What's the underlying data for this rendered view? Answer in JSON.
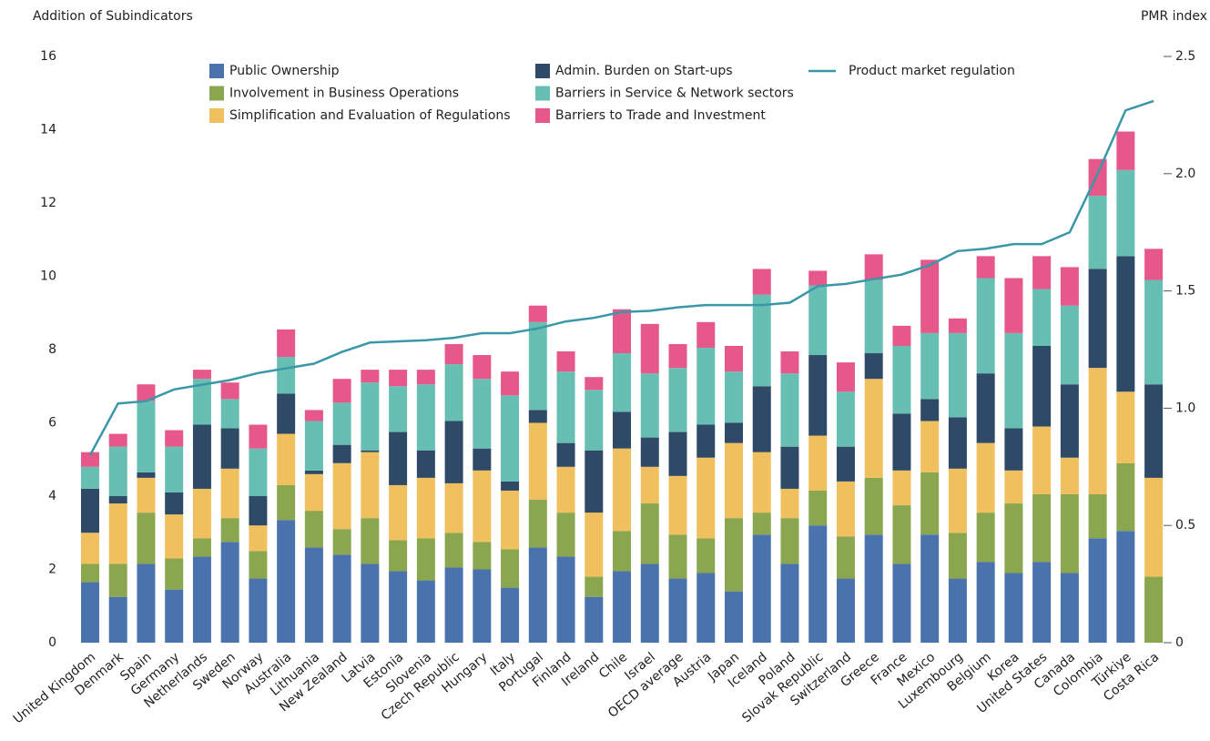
{
  "chart_data": {
    "type": "bar",
    "stacked": true,
    "y_axis_label": "Addition of Subindicators",
    "y2_axis_label": "PMR index",
    "categories": [
      "United Kingdom",
      "Denmark",
      "Spain",
      "Germany",
      "Netherlands",
      "Sweden",
      "Norway",
      "Australia",
      "Lithuania",
      "New Zealand",
      "Latvia",
      "Estonia",
      "Slovenia",
      "Czech Republic",
      "Hungary",
      "Italy",
      "Portugal",
      "Finland",
      "Ireland",
      "Chile",
      "Israel",
      "OECD average",
      "Austria",
      "Japan",
      "Iceland",
      "Poland",
      "Slovak Republic",
      "Switzerland",
      "Greece",
      "France",
      "Mexico",
      "Luxembourg",
      "Belgium",
      "Korea",
      "United States",
      "Canada",
      "Colombia",
      "Türkiye",
      "Costa Rica"
    ],
    "series": [
      {
        "name": "Public Ownership",
        "color": "#4a72ad",
        "values": [
          1.65,
          1.25,
          2.15,
          1.45,
          2.35,
          2.75,
          1.75,
          3.35,
          2.6,
          2.4,
          2.15,
          1.95,
          1.7,
          2.05,
          2.0,
          1.5,
          2.6,
          2.35,
          1.25,
          1.95,
          2.15,
          1.75,
          1.9,
          1.4,
          2.95,
          2.15,
          3.2,
          1.75,
          2.95,
          2.15,
          2.95,
          1.75,
          2.2,
          1.9,
          2.2,
          1.9,
          2.85,
          3.05,
          0
        ]
      },
      {
        "name": "Involvement in Business Operations",
        "color": "#8aa64e",
        "values": [
          0.5,
          0.9,
          1.4,
          0.85,
          0.5,
          0.65,
          0.75,
          0.95,
          1.0,
          0.7,
          1.25,
          0.85,
          1.15,
          0.95,
          0.75,
          1.05,
          1.3,
          1.2,
          0.55,
          1.1,
          1.65,
          1.2,
          0.95,
          2.0,
          0.6,
          1.25,
          0.95,
          1.15,
          1.55,
          1.6,
          1.7,
          1.25,
          1.35,
          1.9,
          1.85,
          2.15,
          1.2,
          1.85,
          1.8
        ]
      },
      {
        "name": "Simplification and Evaluation of Regulations",
        "color": "#f0bf5e",
        "values": [
          0.85,
          1.65,
          0.95,
          1.2,
          1.35,
          1.35,
          0.7,
          1.4,
          1.0,
          1.8,
          1.8,
          1.5,
          1.65,
          1.35,
          1.95,
          1.6,
          2.1,
          1.25,
          1.75,
          2.25,
          1.0,
          1.6,
          2.2,
          2.05,
          1.65,
          0.8,
          1.5,
          1.5,
          2.7,
          0.95,
          1.4,
          1.75,
          1.9,
          0.9,
          1.85,
          1.0,
          3.45,
          1.95,
          2.7
        ]
      },
      {
        "name": "Admin. Burden  on Start-ups",
        "color": "#2f4a66",
        "values": [
          1.2,
          0.2,
          0.15,
          0.6,
          1.75,
          1.1,
          0.8,
          1.1,
          0.1,
          0.5,
          0.05,
          1.45,
          0.75,
          1.7,
          0.6,
          0.25,
          0.35,
          0.65,
          1.7,
          1.0,
          0.8,
          1.2,
          0.9,
          0.55,
          1.8,
          1.15,
          2.2,
          0.95,
          0.7,
          1.55,
          0.6,
          1.4,
          1.9,
          1.15,
          2.2,
          2.0,
          2.7,
          3.7,
          2.55
        ]
      },
      {
        "name": "Barriers in Service & Network sectors",
        "color": "#67bfb3",
        "values": [
          0.6,
          1.35,
          1.95,
          1.25,
          1.25,
          0.8,
          1.3,
          1.0,
          1.35,
          1.15,
          1.85,
          1.25,
          1.8,
          1.55,
          1.9,
          2.35,
          2.4,
          1.95,
          1.65,
          1.6,
          1.75,
          1.75,
          2.1,
          1.4,
          2.5,
          2.0,
          1.9,
          1.5,
          2.0,
          1.85,
          1.8,
          2.3,
          2.6,
          2.6,
          1.55,
          2.15,
          2.0,
          2.35,
          2.85
        ]
      },
      {
        "name": "Barriers to Trade and Investment",
        "color": "#e6578a",
        "values": [
          0.4,
          0.35,
          0.45,
          0.45,
          0.25,
          0.45,
          0.65,
          0.75,
          0.3,
          0.65,
          0.35,
          0.45,
          0.4,
          0.55,
          0.65,
          0.65,
          0.45,
          0.55,
          0.35,
          1.2,
          1.35,
          0.65,
          0.7,
          0.7,
          0.7,
          0.6,
          0.4,
          0.8,
          0.7,
          0.55,
          2.0,
          0.4,
          0.6,
          1.5,
          0.9,
          1.05,
          1.0,
          1.05,
          0.85
        ]
      },
      {
        "name": "Product market regulation",
        "color": "#3a97a8",
        "type": "line",
        "axis": "y2",
        "values": [
          0.8,
          1.02,
          1.03,
          1.08,
          1.1,
          1.12,
          1.15,
          1.17,
          1.19,
          1.24,
          1.28,
          1.285,
          1.29,
          1.3,
          1.32,
          1.32,
          1.34,
          1.37,
          1.385,
          1.41,
          1.415,
          1.43,
          1.44,
          1.44,
          1.44,
          1.45,
          1.52,
          1.53,
          1.55,
          1.57,
          1.61,
          1.67,
          1.68,
          1.7,
          1.7,
          1.75,
          2.0,
          2.27,
          2.31
        ]
      }
    ],
    "ylim": [
      0,
      16
    ],
    "yticks": [
      0,
      2,
      4,
      6,
      8,
      10,
      12,
      14,
      16
    ],
    "y2lim": [
      0,
      2.5
    ],
    "y2ticks": [
      0,
      0.5,
      {
        "value": 1,
        "label": "1.0"
      },
      1.5,
      {
        "value": 2,
        "label": "2.0"
      },
      2.5
    ],
    "grid": false,
    "legend": "top"
  }
}
